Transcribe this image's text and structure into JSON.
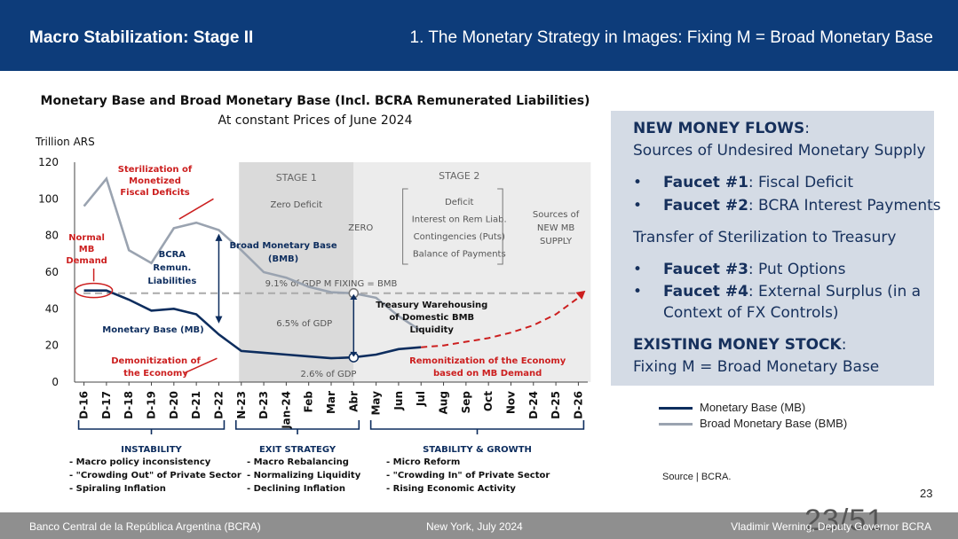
{
  "header": {
    "section_title": "Macro Stabilization: Stage II",
    "subtitle": "1. The Monetary Strategy in Images: Fixing M = Broad Monetary Base",
    "background_color": "#0d3c7a"
  },
  "chart_data": {
    "type": "line",
    "title": "Monetary Base and Broad Monetary Base (Incl. BCRA  Remunerated Liabilities)",
    "subtitle": "At constant Prices of June 2024",
    "ylabel": "Trillion ARS",
    "ylim": [
      0,
      120
    ],
    "yticks": [
      0,
      20,
      40,
      60,
      80,
      100,
      120
    ],
    "categories": [
      "D-16",
      "D-17",
      "D-18",
      "D-19",
      "D-20",
      "D-21",
      "D-22",
      "N-23",
      "D-23",
      "Jan-24",
      "Feb",
      "Mar",
      "Abr",
      "May",
      "Jun",
      "Jul",
      "Aug",
      "Sep",
      "Oct",
      "Nov",
      "D-24",
      "D-25",
      "D-26"
    ],
    "series": [
      {
        "name": "Monetary Base (MB)",
        "color": "#0d2d5e",
        "values": [
          50,
          50,
          45,
          39,
          40,
          37,
          26,
          17,
          16,
          15,
          14,
          13,
          13.5,
          15,
          18,
          19,
          null,
          null,
          null,
          null,
          null,
          null,
          null
        ]
      },
      {
        "name": "Broad Monetary Base (BMB)",
        "color": "#9aa3b0",
        "values": [
          96,
          111,
          72,
          65,
          84,
          87,
          83,
          72,
          60,
          57,
          52,
          49,
          48.5,
          46,
          36,
          28,
          null,
          null,
          null,
          null,
          null,
          null,
          null
        ]
      }
    ],
    "reference_line": {
      "value": 48.5,
      "label": "9.1% of GDP M FIXING = BMB"
    },
    "projection": {
      "label": "Remonitization of the Economy based on MB Demand",
      "x": [
        "Jul",
        "Aug",
        "Sep",
        "Oct",
        "Nov",
        "D-24",
        "D-25",
        "D-26"
      ],
      "values": [
        19,
        20,
        22,
        24,
        27,
        31,
        37,
        46
      ]
    },
    "stages": {
      "stage1": {
        "title": "STAGE 1",
        "text": "Zero Deficit"
      },
      "stage2": {
        "title": "STAGE 2",
        "zero": "ZERO",
        "items": [
          "Deficit",
          "Interest on Rem Liab.",
          "Contingencies (Puts)",
          "Balance of Payments"
        ],
        "sources": "Sources of NEW MB SUPPLY"
      }
    },
    "annotations": {
      "sterilization": "Sterilization of Monetized Fiscal Deficits",
      "normal_mb": "Normal MB Demand",
      "bcra_remun": "BCRA Remun. Liabilities",
      "bmb": "Broad Monetary Base (BMB)",
      "mb": "Monetary Base (MB)",
      "demonetization": "Demonitization of the Economy",
      "gdp65": "6.5% of GDP",
      "gdp26": "2.6% of GDP",
      "treasury": "Treasury Warehousing of Domestic BMB Liquidity"
    },
    "phases": [
      {
        "title": "INSTABILITY",
        "items": [
          "- Macro policy inconsistency",
          "- \"Crowding Out\" of Private Sector",
          "- Spiraling Inflation"
        ]
      },
      {
        "title": "EXIT STRATEGY",
        "items": [
          "- Macro Rebalancing",
          "- Normalizing Liquidity",
          "- Declining Inflation"
        ]
      },
      {
        "title": "STABILITY & GROWTH",
        "items": [
          "- Micro Reform",
          "- \"Crowding In\" of Private Sector",
          "- Rising Economic Activity"
        ]
      }
    ],
    "colors": {
      "mb": "#0d2d5e",
      "bmb": "#9aa3b0",
      "annotation_red": "#cc1f1f",
      "stage1_bg": "#dadada",
      "stage2_bg": "#ececec"
    }
  },
  "panel": {
    "heading1_bold": "NEW MONEY FLOWS",
    "heading1_rest": ":",
    "line1": "Sources of Undesired Monetary Supply",
    "bullets1": [
      {
        "bold": "Faucet #1",
        "rest": ": Fiscal Deficit"
      },
      {
        "bold": "Faucet #2",
        "rest": ": BCRA Interest Payments"
      }
    ],
    "line2": "Transfer of Sterilization to Treasury",
    "bullets2": [
      {
        "bold": "Faucet #3",
        "rest": ": Put Options"
      },
      {
        "bold": "Faucet #4",
        "rest": ": External Surplus (in a",
        "rest2": "Context of FX Controls)"
      }
    ],
    "heading2_bold": "EXISTING MONEY STOCK",
    "heading2_rest": ":",
    "line3": "Fixing M = Broad Monetary Base",
    "bullet_char": "•",
    "background_color": "#d4dbe5"
  },
  "legend": {
    "mb_label": "Monetary Base (MB)",
    "bmb_label": "Broad Monetary Base (BMB)"
  },
  "source": "Source | BCRA.",
  "page_number": "23",
  "footer": {
    "org": "Banco Central de la República Argentina (BCRA)",
    "event": "New York, July 2024",
    "speaker": "Vladimir Werning, Deputy Governor BCRA",
    "page_indicator": "23/51"
  }
}
